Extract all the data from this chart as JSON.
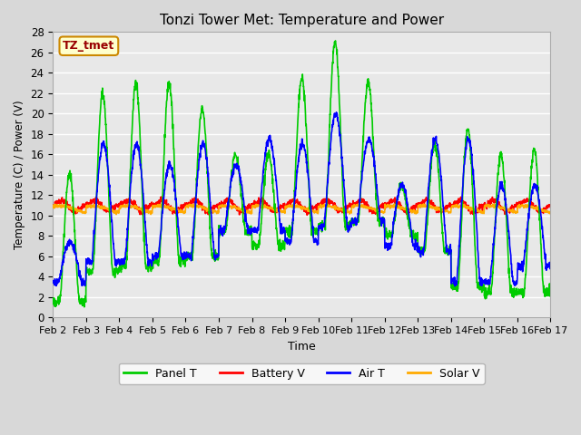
{
  "title": "Tonzi Tower Met: Temperature and Power",
  "xlabel": "Time",
  "ylabel": "Temperature (C) / Power (V)",
  "ylim": [
    0,
    28
  ],
  "annotation": "TZ_tmet",
  "x_tick_labels": [
    "Feb 2",
    "Feb 3",
    "Feb 4",
    "Feb 5",
    "Feb 6",
    "Feb 7",
    "Feb 8",
    "Feb 9",
    "Feb 10",
    "Feb 11",
    "Feb 12",
    "Feb 13",
    "Feb 14",
    "Feb 15",
    "Feb 16",
    "Feb 17"
  ],
  "series": {
    "Panel T": {
      "color": "#00cc00",
      "linewidth": 1.2
    },
    "Battery V": {
      "color": "#ff0000",
      "linewidth": 1.2
    },
    "Air T": {
      "color": "#0000ff",
      "linewidth": 1.2
    },
    "Solar V": {
      "color": "#ffaa00",
      "linewidth": 1.2
    }
  },
  "bg_color": "#e8e8e8",
  "title_fontsize": 11,
  "legend_fontsize": 9,
  "annotation_facecolor": "#ffffcc",
  "annotation_edgecolor": "#cc8800",
  "annotation_textcolor": "#990000"
}
